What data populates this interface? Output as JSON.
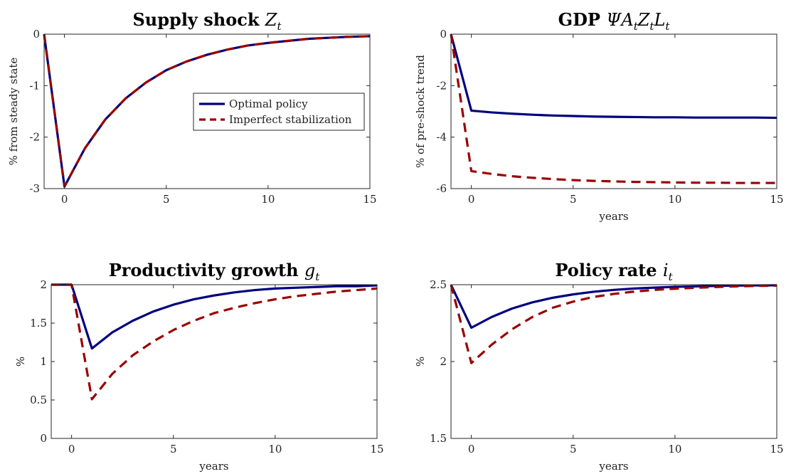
{
  "chart_data": [
    {
      "type": "line",
      "title": {
        "main": "Supply shock ",
        "var": "Z",
        "sub": "t"
      },
      "xlabel": "",
      "ylabel": "% from steady state",
      "xlim": [
        -1,
        15
      ],
      "ylim": [
        -3,
        0
      ],
      "xticks": [
        0,
        5,
        10,
        15
      ],
      "yticks": [
        -3,
        -2,
        -1,
        0
      ],
      "legend": {
        "placement": "middle-right",
        "entries": [
          "Optimal policy",
          "Imperfect stabilization"
        ]
      },
      "x": [
        -1,
        0,
        1,
        2,
        3,
        4,
        5,
        6,
        7,
        8,
        9,
        10,
        11,
        12,
        13,
        14,
        15
      ],
      "series": [
        {
          "name": "Optimal policy",
          "color": "#00007f",
          "dash": "solid",
          "values": [
            0,
            -2.96,
            -2.22,
            -1.66,
            -1.25,
            -0.94,
            -0.7,
            -0.53,
            -0.4,
            -0.3,
            -0.22,
            -0.17,
            -0.13,
            -0.09,
            -0.07,
            -0.05,
            -0.04
          ]
        },
        {
          "name": "Imperfect stabilization",
          "color": "#9a0000",
          "dash": "dashed",
          "values": [
            0,
            -2.96,
            -2.22,
            -1.66,
            -1.25,
            -0.94,
            -0.7,
            -0.53,
            -0.4,
            -0.3,
            -0.22,
            -0.17,
            -0.13,
            -0.09,
            -0.07,
            -0.05,
            -0.04
          ]
        }
      ]
    },
    {
      "type": "line",
      "title": {
        "main": "GDP ",
        "var": "ΨA",
        "sub": "t",
        "var2": "Z",
        "sub2": "t",
        "var3": "L",
        "sub3": "t"
      },
      "xlabel": "years",
      "ylabel": "% of pre-shock trend",
      "xlim": [
        -1,
        15
      ],
      "ylim": [
        -6,
        0
      ],
      "xticks": [
        0,
        5,
        10,
        15
      ],
      "yticks": [
        -6,
        -4,
        -2,
        0
      ],
      "x": [
        -1,
        0,
        1,
        2,
        3,
        4,
        5,
        6,
        7,
        8,
        9,
        10,
        11,
        12,
        13,
        14,
        15
      ],
      "series": [
        {
          "name": "Optimal policy",
          "color": "#00007f",
          "dash": "solid",
          "values": [
            0,
            -2.97,
            -3.04,
            -3.09,
            -3.13,
            -3.16,
            -3.18,
            -3.2,
            -3.21,
            -3.22,
            -3.23,
            -3.23,
            -3.24,
            -3.24,
            -3.24,
            -3.24,
            -3.25
          ]
        },
        {
          "name": "Imperfect stabilization",
          "color": "#9a0000",
          "dash": "dashed",
          "values": [
            0,
            -5.32,
            -5.43,
            -5.52,
            -5.58,
            -5.63,
            -5.67,
            -5.7,
            -5.72,
            -5.74,
            -5.75,
            -5.76,
            -5.77,
            -5.77,
            -5.78,
            -5.78,
            -5.78
          ]
        }
      ]
    },
    {
      "type": "line",
      "title": {
        "main": "Productivity growth ",
        "var": "g",
        "sub": "t"
      },
      "xlabel": "years",
      "ylabel": "%",
      "xlim": [
        -1,
        15
      ],
      "ylim": [
        0,
        2
      ],
      "xticks": [
        0,
        5,
        10,
        15
      ],
      "yticks": [
        0,
        0.5,
        1,
        1.5,
        2
      ],
      "x": [
        -1,
        0,
        1,
        2,
        3,
        4,
        5,
        6,
        7,
        8,
        9,
        10,
        11,
        12,
        13,
        14,
        15
      ],
      "series": [
        {
          "name": "Optimal policy",
          "color": "#00007f",
          "dash": "solid",
          "values": [
            2,
            2,
            1.17,
            1.38,
            1.53,
            1.65,
            1.74,
            1.81,
            1.86,
            1.9,
            1.93,
            1.95,
            1.96,
            1.97,
            1.98,
            1.98,
            1.99
          ]
        },
        {
          "name": "Imperfect stabilization",
          "color": "#9a0000",
          "dash": "dashed",
          "values": [
            2,
            2,
            0.51,
            0.84,
            1.08,
            1.26,
            1.41,
            1.53,
            1.63,
            1.7,
            1.76,
            1.81,
            1.85,
            1.88,
            1.91,
            1.93,
            1.95
          ]
        }
      ]
    },
    {
      "type": "line",
      "title": {
        "main": "Policy rate ",
        "var": "i",
        "sub": "t"
      },
      "xlabel": "years",
      "ylabel": "%",
      "xlim": [
        -1,
        15
      ],
      "ylim": [
        1.5,
        2.5
      ],
      "xticks": [
        0,
        5,
        10,
        15
      ],
      "yticks": [
        1.5,
        2,
        2.5
      ],
      "x": [
        -1,
        0,
        1,
        2,
        3,
        4,
        5,
        6,
        7,
        8,
        9,
        10,
        11,
        12,
        13,
        14,
        15
      ],
      "series": [
        {
          "name": "Optimal policy",
          "color": "#00007f",
          "dash": "solid",
          "values": [
            2.5,
            2.22,
            2.29,
            2.345,
            2.385,
            2.415,
            2.437,
            2.454,
            2.466,
            2.475,
            2.481,
            2.486,
            2.489,
            2.492,
            2.494,
            2.495,
            2.496
          ]
        },
        {
          "name": "Imperfect stabilization",
          "color": "#9a0000",
          "dash": "dashed",
          "values": [
            2.5,
            1.99,
            2.11,
            2.21,
            2.29,
            2.35,
            2.39,
            2.42,
            2.44,
            2.455,
            2.466,
            2.474,
            2.48,
            2.485,
            2.489,
            2.492,
            2.494
          ]
        }
      ]
    }
  ]
}
